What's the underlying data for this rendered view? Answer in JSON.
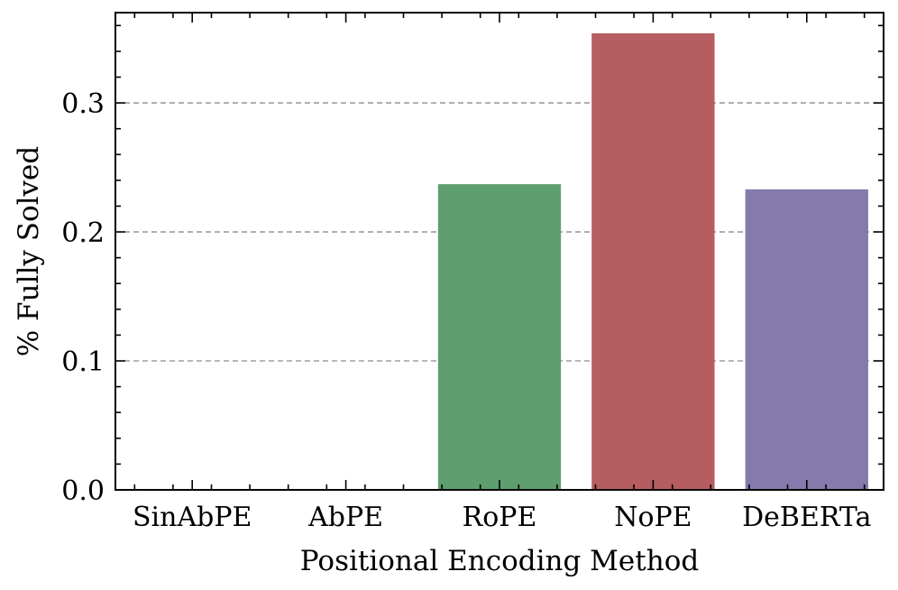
{
  "chart_data": {
    "type": "bar",
    "title": "",
    "xlabel": "Positional Encoding Method",
    "ylabel": "% Fully Solved",
    "categories": [
      "SinAbPE",
      "AbPE",
      "RoPE",
      "NoPE",
      "DeBERTa"
    ],
    "values": [
      0.0,
      0.0,
      0.237,
      0.354,
      0.233
    ],
    "colors": [
      "#4f77aa",
      "#dd8452",
      "#5f9e6e",
      "#b55d60",
      "#857aab"
    ],
    "ylim": [
      0.0,
      0.37
    ],
    "yticks": [
      0.0,
      0.1,
      0.2,
      0.3
    ],
    "ytick_labels": [
      "0.0",
      "0.1",
      "0.2",
      "0.3"
    ],
    "grid": "y-dashed",
    "gridline_color": "#8c8c8c"
  }
}
